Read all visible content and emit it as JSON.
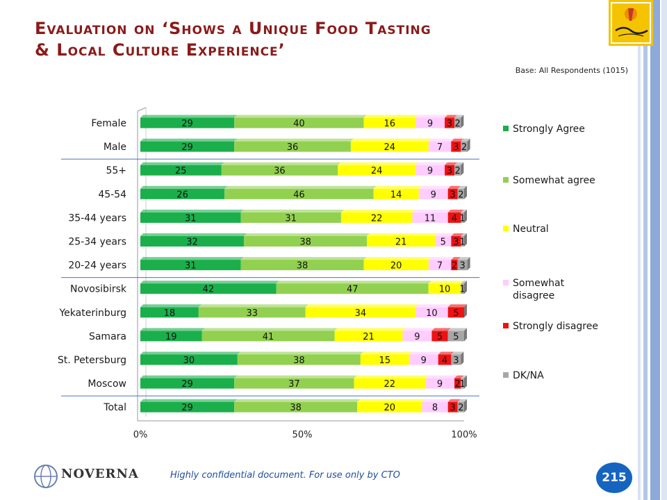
{
  "slide": {
    "title_line1": "Evaluation on ‘Shows a Unique Food Tasting",
    "title_line2": "& Local Culture Experience’",
    "base_note": "Base: All Respondents (1015)",
    "footer_note": "Highly confidential document. For use only by CTO",
    "page_number": "215",
    "company_logo_text": "NOVERNA",
    "logo_icon": "cyprus-logo-icon"
  },
  "colors": {
    "strongly_agree": "#1aaf4b",
    "somewhat_agree": "#92d050",
    "neutral": "#ffff00",
    "somewhat_disagree": "#ffccff",
    "strongly_disagree": "#ee1111",
    "dk_na": "#a6a6a6",
    "title": "#8b1a1a",
    "accent": "#1565c0"
  },
  "chart_data": {
    "type": "bar",
    "orientation": "horizontal",
    "stacked": true,
    "categories": [
      "Female",
      "Male",
      "55+",
      "45-54",
      "35-44 years",
      "25-34 years",
      "20-24 years",
      "Novosibirsk",
      "Yekaterinburg",
      "Samara",
      "St. Petersburg",
      "Moscow",
      "Total"
    ],
    "series": [
      {
        "name": "Strongly Agree",
        "values": [
          29,
          29,
          25,
          26,
          31,
          32,
          31,
          42,
          18,
          19,
          30,
          29,
          29
        ]
      },
      {
        "name": "Somewhat agree",
        "values": [
          40,
          36,
          36,
          46,
          31,
          38,
          38,
          47,
          33,
          41,
          38,
          37,
          38
        ]
      },
      {
        "name": "Neutral",
        "values": [
          16,
          24,
          24,
          14,
          22,
          21,
          20,
          10,
          34,
          21,
          15,
          22,
          20
        ]
      },
      {
        "name": "Somewhat disagree",
        "values": [
          9,
          7,
          9,
          9,
          11,
          5,
          7,
          0,
          10,
          9,
          9,
          9,
          8
        ]
      },
      {
        "name": "Strongly disagree",
        "values": [
          3,
          3,
          3,
          3,
          4,
          3,
          2,
          0,
          5,
          5,
          4,
          2,
          3
        ]
      },
      {
        "name": "DK/NA",
        "values": [
          2,
          2,
          2,
          2,
          1,
          1,
          3,
          1,
          0,
          5,
          3,
          1,
          2
        ]
      }
    ],
    "xlim": [
      0,
      100
    ],
    "xticks": [
      "0%",
      "50%",
      "100%"
    ],
    "legend_position": "right",
    "group_separators_after": [
      "Male",
      "20-24 years",
      "Moscow"
    ]
  }
}
